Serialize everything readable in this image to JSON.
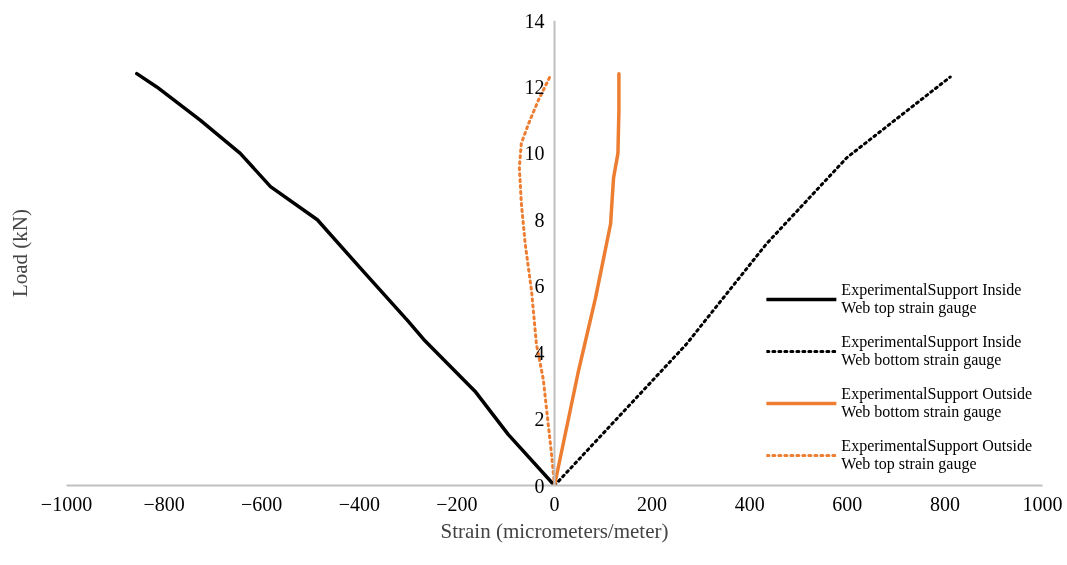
{
  "chart_data": {
    "type": "line",
    "xlabel": "Strain (micrometers/meter)",
    "ylabel": "Load (kN)",
    "xlim": [
      -1000,
      1000
    ],
    "xticks": [
      -1000,
      -800,
      -600,
      -400,
      -200,
      0,
      200,
      400,
      600,
      800,
      1000
    ],
    "ylim": [
      0,
      14
    ],
    "yticks": [
      0,
      2,
      4,
      6,
      8,
      10,
      12,
      14
    ],
    "grid": false,
    "legend": "right",
    "series": [
      {
        "name": "ExperimentalSupport Inside Web top strain gauge",
        "color": "#000000",
        "line_style": "solid",
        "x": [
          0,
          -95,
          -163,
          -265,
          -300,
          -389,
          -486,
          -582,
          -644,
          -726,
          -815,
          -856
        ],
        "values": [
          0,
          1.54,
          2.84,
          4.35,
          4.95,
          6.4,
          8.0,
          9.0,
          10.0,
          11.0,
          12.0,
          12.4
        ]
      },
      {
        "name": "ExperimentalSupport Inside Web bottom strain gauge",
        "color": "#000000",
        "line_style": "dotted",
        "x": [
          0,
          270,
          434,
          599,
          811
        ],
        "values": [
          0,
          4.25,
          7.27,
          9.87,
          12.3
        ]
      },
      {
        "name": "ExperimentalSupport Outside Web bottom strain gauge",
        "color": "#ed7d31",
        "line_style": "solid",
        "x": [
          0,
          49,
          84,
          115,
          117,
          121,
          130,
          132,
          132
        ],
        "values": [
          0,
          3.44,
          5.64,
          7.88,
          8.36,
          9.26,
          10.0,
          11.3,
          12.4
        ]
      },
      {
        "name": "ExperimentalSupport Outside Web top strain gauge",
        "color": "#ed7d31",
        "line_style": "dotted",
        "x": [
          0,
          -6,
          -23,
          -37,
          -47,
          -60,
          -68,
          -72,
          -68,
          -53,
          -33,
          -8
        ],
        "values": [
          0,
          0.93,
          3.2,
          4.25,
          5.85,
          7.27,
          8.5,
          9.57,
          10.3,
          10.9,
          11.6,
          12.35
        ]
      }
    ]
  }
}
